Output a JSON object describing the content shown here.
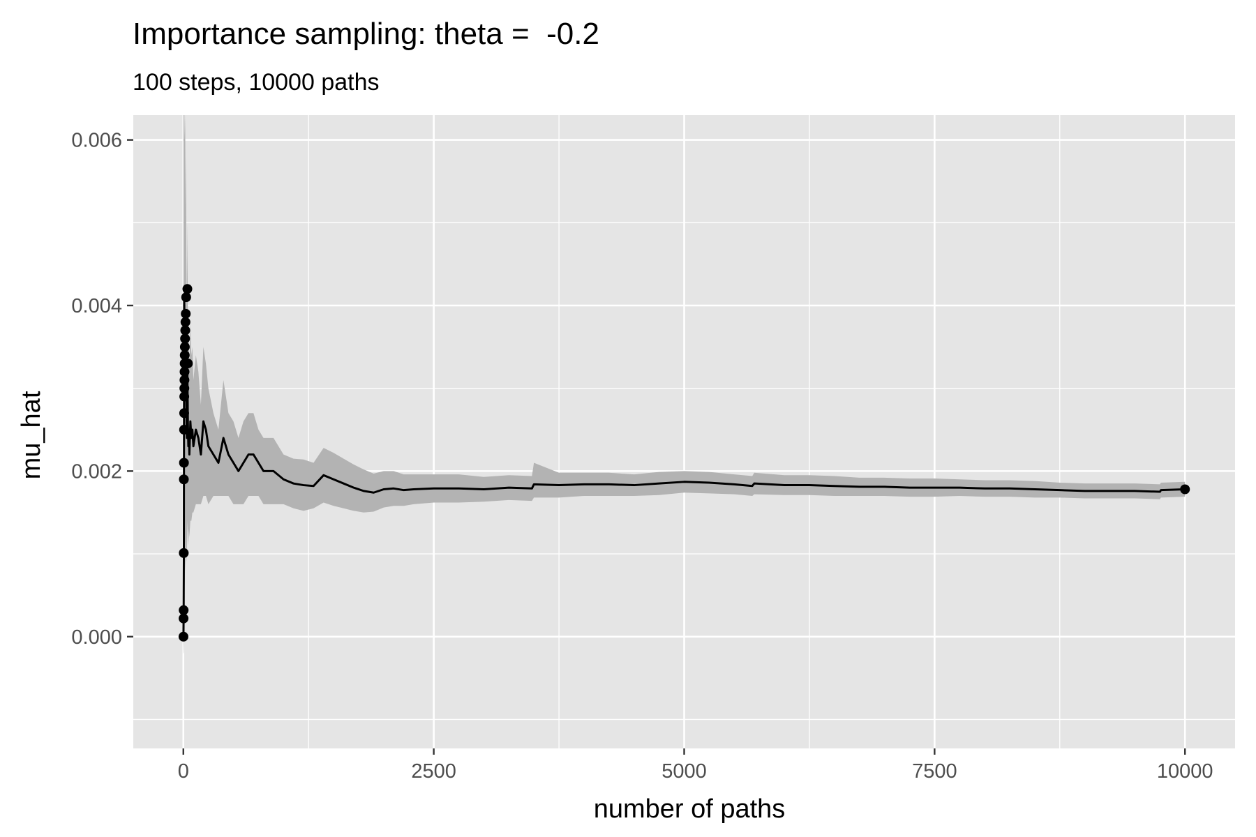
{
  "chart_data": {
    "type": "line",
    "title": "Importance sampling: theta =  -0.2",
    "subtitle": "100 steps, 10000 paths",
    "xlabel": "number of paths",
    "ylabel": "mu_hat",
    "xlim": [
      -500,
      10500
    ],
    "ylim": [
      -0.00135,
      0.0063
    ],
    "x_ticks": [
      0,
      2500,
      5000,
      7500,
      10000
    ],
    "x_tick_labels": [
      "0",
      "2500",
      "5000",
      "7500",
      "10000"
    ],
    "y_ticks": [
      0.0,
      0.002,
      0.004,
      0.006
    ],
    "y_tick_labels": [
      "0.000",
      "0.002",
      "0.004",
      "0.006"
    ],
    "grid": true,
    "legend": "none",
    "colors": {
      "panel": "#e5e5e5",
      "grid": "#ffffff",
      "line": "#000000",
      "ribbon": "#b3b3b3"
    },
    "series": [
      {
        "x": [
          1,
          3,
          5,
          8,
          10,
          14,
          18,
          22,
          26,
          30,
          35,
          40,
          45,
          50,
          55,
          60,
          70,
          80,
          90,
          100,
          125,
          150,
          175,
          200,
          225,
          250,
          300,
          350,
          400,
          450,
          500,
          550,
          600,
          650,
          700,
          750,
          800,
          900,
          1000,
          1100,
          1200,
          1300,
          1400,
          1500,
          1600,
          1700,
          1800,
          1900,
          2000,
          2100,
          2200,
          2300,
          2500,
          2750,
          3000,
          3250,
          3480,
          3500,
          3750,
          4000,
          4250,
          4500,
          4750,
          5000,
          5250,
          5500,
          5680,
          5700,
          6000,
          6250,
          6500,
          6750,
          7000,
          7250,
          7500,
          7750,
          8000,
          8250,
          8500,
          8750,
          9000,
          9250,
          9500,
          9750,
          9760,
          10000
        ],
        "y": [
          0.0,
          0.0003,
          0.001,
          0.0041,
          0.0039,
          0.0033,
          0.0038,
          0.003,
          0.0035,
          0.0028,
          0.0024,
          0.0032,
          0.0026,
          0.0023,
          0.0025,
          0.0022,
          0.0026,
          0.0024,
          0.0025,
          0.0023,
          0.0025,
          0.0024,
          0.0022,
          0.0026,
          0.0025,
          0.0023,
          0.0022,
          0.0021,
          0.0024,
          0.0022,
          0.0021,
          0.002,
          0.0021,
          0.0022,
          0.0022,
          0.0021,
          0.002,
          0.002,
          0.0019,
          0.00185,
          0.00183,
          0.00182,
          0.00195,
          0.0019,
          0.00185,
          0.0018,
          0.00176,
          0.00174,
          0.00178,
          0.00179,
          0.00177,
          0.00178,
          0.00179,
          0.00179,
          0.00178,
          0.0018,
          0.00179,
          0.00184,
          0.00183,
          0.00184,
          0.00184,
          0.00183,
          0.00185,
          0.00187,
          0.00186,
          0.00184,
          0.00182,
          0.00185,
          0.00183,
          0.00183,
          0.00182,
          0.00181,
          0.00181,
          0.0018,
          0.0018,
          0.0018,
          0.00179,
          0.00179,
          0.00178,
          0.00177,
          0.00176,
          0.00176,
          0.00176,
          0.00175,
          0.00177,
          0.00178
        ],
        "lower": [
          -0.0002,
          -0.0002,
          -0.0001,
          0.0005,
          0.0008,
          0.0006,
          0.001,
          0.0008,
          0.0012,
          0.001,
          0.0009,
          0.0014,
          0.0012,
          0.0011,
          0.0013,
          0.0012,
          0.0014,
          0.0014,
          0.0015,
          0.0015,
          0.0016,
          0.0016,
          0.0016,
          0.0017,
          0.0017,
          0.0016,
          0.0017,
          0.0017,
          0.0017,
          0.0017,
          0.0016,
          0.0016,
          0.0016,
          0.0017,
          0.0017,
          0.0017,
          0.0016,
          0.0016,
          0.0016,
          0.00155,
          0.00152,
          0.00155,
          0.00162,
          0.00158,
          0.00155,
          0.00152,
          0.0015,
          0.00151,
          0.00156,
          0.00158,
          0.00158,
          0.0016,
          0.00162,
          0.00162,
          0.00163,
          0.00165,
          0.00164,
          0.00168,
          0.00168,
          0.0017,
          0.0017,
          0.0017,
          0.00171,
          0.00174,
          0.00173,
          0.00172,
          0.0017,
          0.00172,
          0.00171,
          0.00171,
          0.0017,
          0.0017,
          0.0017,
          0.00169,
          0.00169,
          0.0017,
          0.00169,
          0.00169,
          0.00168,
          0.00168,
          0.00167,
          0.00167,
          0.00167,
          0.00166,
          0.00168,
          0.00169
        ],
        "upper": [
          0.0063,
          0.0063,
          0.0063,
          0.0063,
          0.0063,
          0.006,
          0.0063,
          0.0052,
          0.0058,
          0.0046,
          0.0039,
          0.005,
          0.004,
          0.0035,
          0.0037,
          0.0032,
          0.0038,
          0.0034,
          0.0035,
          0.0031,
          0.0034,
          0.0032,
          0.0028,
          0.0035,
          0.0033,
          0.003,
          0.0027,
          0.0025,
          0.0031,
          0.0027,
          0.0026,
          0.0024,
          0.0026,
          0.0027,
          0.0027,
          0.0025,
          0.0024,
          0.0024,
          0.0022,
          0.00215,
          0.00214,
          0.0021,
          0.00228,
          0.00222,
          0.00215,
          0.00208,
          0.00202,
          0.00197,
          0.002,
          0.002,
          0.00196,
          0.00196,
          0.00196,
          0.00196,
          0.00193,
          0.00195,
          0.00194,
          0.0021,
          0.00198,
          0.00198,
          0.00198,
          0.00196,
          0.00199,
          0.002,
          0.00199,
          0.00196,
          0.00194,
          0.00198,
          0.00195,
          0.00195,
          0.00194,
          0.00192,
          0.00192,
          0.00191,
          0.00191,
          0.0019,
          0.00189,
          0.00189,
          0.00188,
          0.00186,
          0.00185,
          0.00185,
          0.00185,
          0.00184,
          0.00186,
          0.00187
        ]
      }
    ],
    "points": {
      "x": [
        1,
        2,
        3,
        4,
        5,
        6,
        7,
        8,
        9,
        10,
        11,
        12,
        13,
        14,
        15,
        17,
        19,
        21,
        24,
        28,
        40,
        45,
        10000
      ],
      "y": [
        0.0,
        0.00022,
        0.00032,
        0.00101,
        0.0019,
        0.0021,
        0.0025,
        0.0027,
        0.0029,
        0.003,
        0.0031,
        0.0032,
        0.0033,
        0.0034,
        0.0035,
        0.0036,
        0.0037,
        0.0038,
        0.0039,
        0.0041,
        0.0042,
        0.0033,
        0.00178
      ]
    }
  }
}
